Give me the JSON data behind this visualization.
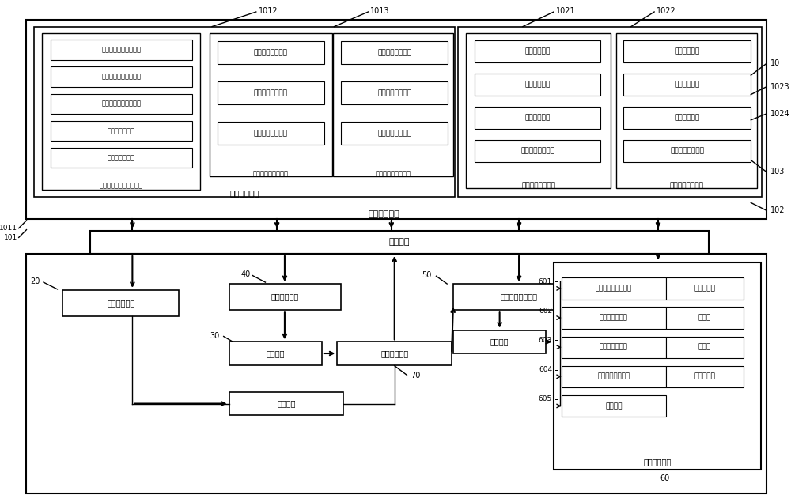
{
  "bg": "#ffffff",
  "items_water": [
    "空调供回水温度传感器",
    "空调供回水压力传感器",
    "空调供回水流量传感器",
    "风口风量传感器",
    "风口风压传感器"
  ],
  "items_cw": [
    "供回水温度传感器",
    "供回水压力传感器",
    "供回水流量传感器"
  ],
  "items_env": [
    "温度检测装置",
    "湿度检测装置",
    "气压检测装置",
    "空气质量检测装置"
  ],
  "ctrl_units": [
    "水（风）量控制单元",
    "冷温水控制单元",
    "冷却水控制单元",
    "冷却风机控制单元"
  ],
  "exec_units": [
    "阀执行机构",
    "冷温泵",
    "冷却泵",
    "冷却塔风机"
  ],
  "lbl_water": "水（风）量工况检测装置",
  "lbl_coldwarm": "冷温水工况检测装置",
  "lbl_cooling": "冷却水工况检测装置",
  "lbl_process": "工艺数据单元",
  "lbl_indoor": "室内环境参数单元",
  "lbl_outdoor": "室外环境参数单元",
  "lbl_datacoll": "数据采集模块",
  "lbl_comm": "通讯模块",
  "lbl_datastor": "数据存储模块",
  "lbl_dynmod": "动态模拟模块",
  "lbl_hmi": "人机界面模块",
  "lbl_optctrl": "持续调优控制模块",
  "lbl_exec": "执行调整模块",
  "lbl_achost": "空调主机"
}
